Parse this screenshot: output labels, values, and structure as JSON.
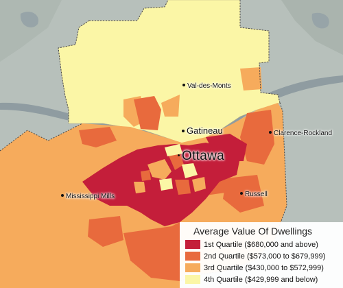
{
  "legend": {
    "title": "Average Value Of Dwellings",
    "items": [
      {
        "label": "1st Quartile ($680,000 and above)",
        "color": "#c41e3a"
      },
      {
        "label": "2nd Quartile ($573,000 to $679,999)",
        "color": "#e86a3d"
      },
      {
        "label": "3rd Quartile ($430,000 to $572,999)",
        "color": "#f6ab5c"
      },
      {
        "label": "4th Quartile ($429,999 and below)",
        "color": "#fbf6a6"
      }
    ]
  },
  "places": {
    "val_des_monts": "Val-des-Monts",
    "gatineau": "Gatineau",
    "ottawa": "Ottawa",
    "clarence_rockland": "Clarence-Rockland",
    "mississippi_mills": "Mississippi Mills",
    "russell": "Russell"
  },
  "colors": {
    "background_land": "#b9c2be",
    "water": "#8e9ba0",
    "boundary": "#555555"
  }
}
